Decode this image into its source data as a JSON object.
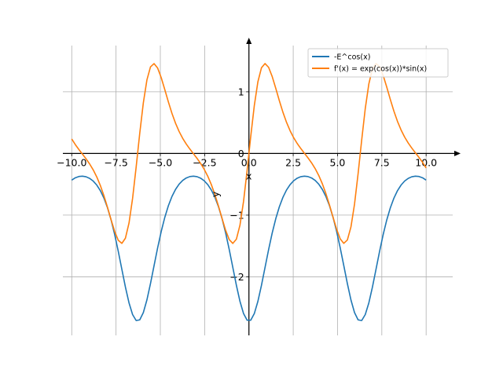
{
  "chart_data": {
    "type": "line",
    "title": "",
    "xlabel": "x",
    "ylabel": "y",
    "xlim": [
      -10.5,
      11.5
    ],
    "ylim": [
      -2.95,
      1.75
    ],
    "grid": true,
    "x_ticks": [
      -10.0,
      -7.5,
      -5.0,
      -2.5,
      0.0,
      2.5,
      5.0,
      7.5,
      10.0
    ],
    "x_tick_labels": [
      "−10.0",
      "−7.5",
      "−5.0",
      "−2.5",
      "0.0",
      "2.5",
      "5.0",
      "7.5",
      "10.0"
    ],
    "y_ticks": [
      -2,
      -1,
      0,
      1
    ],
    "y_tick_labels": [
      "−2",
      "−1",
      "0",
      "1"
    ],
    "x_range": [
      -10,
      10
    ],
    "sample_count": 100,
    "legend_position": "top-right",
    "series": [
      {
        "name": "-E^cos(x)",
        "expression": "-exp(cos(x))",
        "color": "#1f77b4"
      },
      {
        "name": "f'(x) = exp(cos(x))*sin(x)",
        "expression": "exp(cos(x))*sin(x)",
        "color": "#ff7f0e"
      }
    ]
  }
}
